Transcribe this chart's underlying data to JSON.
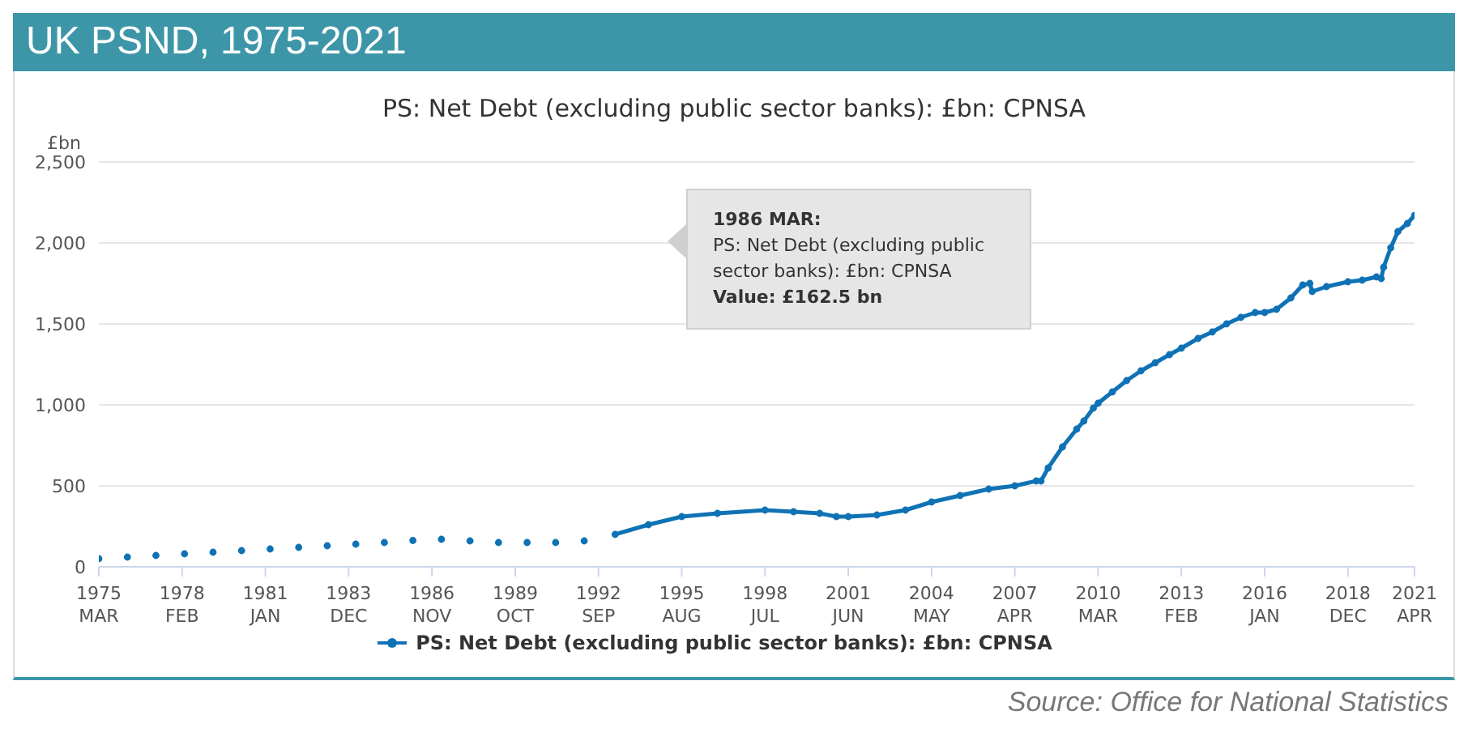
{
  "chart_data": {
    "type": "line",
    "title": "UK PSND, 1975-2021",
    "subtitle": "PS: Net Debt (excluding public sector banks): £bn: CPNSA",
    "ylabel": "£bn",
    "series": [
      {
        "name": "PS: Net Debt (excluding public sector banks): £bn: CPNSA",
        "color": "#0f72b5",
        "x": [
          "1975-03",
          "1975-09",
          "1976-03",
          "1976-09",
          "1977-03",
          "1977-09",
          "1978-03",
          "1978-09",
          "1979-03",
          "1979-09",
          "1980-03",
          "1980-09",
          "1981-03",
          "1981-09",
          "1982-03",
          "1982-09",
          "1983-03",
          "1983-09",
          "1984-03",
          "1984-09",
          "1985-03",
          "1985-09",
          "1986-03",
          "1986-09",
          "1987-03",
          "1987-09",
          "1988-03",
          "1988-09",
          "1989-03",
          "1989-09",
          "1990-03",
          "1990-09",
          "1991-03",
          "1991-09",
          "1992-03",
          "1992-09",
          "1993-04",
          "1994-06",
          "1995-08",
          "1996-11",
          "1998-07",
          "1999-07",
          "2000-06",
          "2001-01",
          "2001-06",
          "2002-06",
          "2003-06",
          "2004-05",
          "2005-05",
          "2006-05",
          "2007-04",
          "2008-01",
          "2008-03",
          "2008-06",
          "2008-12",
          "2009-06",
          "2009-09",
          "2010-01",
          "2010-03",
          "2010-09",
          "2011-03",
          "2011-09",
          "2012-03",
          "2012-09",
          "2013-02",
          "2013-09",
          "2014-03",
          "2014-09",
          "2015-03",
          "2015-09",
          "2016-01",
          "2016-06",
          "2016-12",
          "2017-05",
          "2017-08",
          "2017-09",
          "2018-03",
          "2018-12",
          "2019-06",
          "2019-12",
          "2020-02",
          "2020-03",
          "2020-06",
          "2020-09",
          "2021-01",
          "2021-04"
        ],
        "values": [
          50,
          null,
          60,
          null,
          70,
          null,
          80,
          null,
          90,
          null,
          100,
          null,
          110,
          null,
          120,
          null,
          130,
          null,
          140,
          null,
          150,
          null,
          162.5,
          null,
          170,
          null,
          160,
          null,
          150,
          null,
          150,
          null,
          150,
          null,
          160,
          null,
          200,
          260,
          310,
          330,
          350,
          340,
          330,
          310,
          310,
          320,
          350,
          400,
          440,
          480,
          500,
          530,
          530,
          610,
          740,
          850,
          900,
          980,
          1010,
          1080,
          1150,
          1210,
          1260,
          1310,
          1350,
          1410,
          1450,
          1500,
          1540,
          1570,
          1570,
          1590,
          1660,
          1740,
          1750,
          1700,
          1730,
          1760,
          1770,
          1790,
          1780,
          1850,
          1970,
          2070,
          2120,
          2170
        ]
      }
    ],
    "xlim": [
      "1975-03",
      "2021-04"
    ],
    "xticks": [
      {
        "value": "1975-03",
        "label": "1975 MAR"
      },
      {
        "value": "1978-02",
        "label": "1978 FEB"
      },
      {
        "value": "1981-01",
        "label": "1981 JAN"
      },
      {
        "value": "1983-12",
        "label": "1983 DEC"
      },
      {
        "value": "1986-11",
        "label": "1986 NOV"
      },
      {
        "value": "1989-10",
        "label": "1989 OCT"
      },
      {
        "value": "1992-09",
        "label": "1992 SEP"
      },
      {
        "value": "1995-08",
        "label": "1995 AUG"
      },
      {
        "value": "1998-07",
        "label": "1998 JUL"
      },
      {
        "value": "2001-06",
        "label": "2001 JUN"
      },
      {
        "value": "2004-05",
        "label": "2004 MAY"
      },
      {
        "value": "2007-04",
        "label": "2007 APR"
      },
      {
        "value": "2010-03",
        "label": "2010 MAR"
      },
      {
        "value": "2013-02",
        "label": "2013 FEB"
      },
      {
        "value": "2016-01",
        "label": "2016 JAN"
      },
      {
        "value": "2018-12",
        "label": "2018 DEC"
      },
      {
        "value": "2021-04",
        "label": "2021 APR"
      }
    ],
    "ylim": [
      0,
      2500
    ],
    "yticks": [
      {
        "value": 0,
        "label": "0"
      },
      {
        "value": 500,
        "label": "500"
      },
      {
        "value": 1000,
        "label": "1,000"
      },
      {
        "value": 1500,
        "label": "1,500"
      },
      {
        "value": 2000,
        "label": "2,000"
      },
      {
        "value": 2500,
        "label": "2,500"
      }
    ],
    "grid": "y",
    "legend": "bottom",
    "marker": "circle",
    "annotations": [
      "1986 MAR:\nPS: Net Debt (excluding public sector banks): £bn: CPNSA\nValue: £162.5 bn",
      "Source: Office for National Statistics"
    ]
  }
}
